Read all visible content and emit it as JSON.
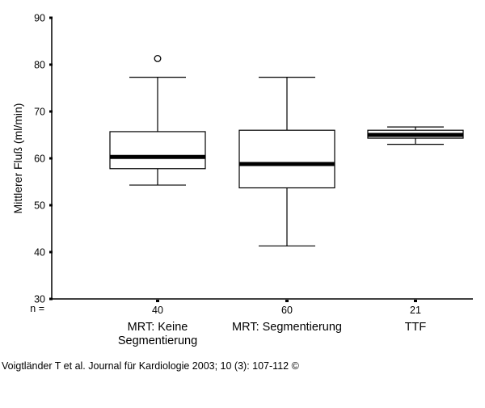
{
  "chart_data": {
    "type": "box",
    "ylabel": "Mittlerer Fluß (ml/min)",
    "ylim": [
      30,
      90
    ],
    "yticks": [
      30,
      40,
      50,
      60,
      70,
      80,
      90
    ],
    "n_prefix": "n =",
    "grid": false,
    "categories": [
      {
        "label": [
          "MRT: Keine",
          "Segmentierung"
        ],
        "n": "40",
        "whisker_low": 54.3,
        "q1": 57.8,
        "median": 60.3,
        "q3": 65.7,
        "whisker_high": 77.3,
        "outliers": [
          81.3
        ]
      },
      {
        "label": [
          "MRT: Segmentierung"
        ],
        "n": "60",
        "whisker_low": 41.3,
        "q1": 53.7,
        "median": 58.8,
        "q3": 66.0,
        "whisker_high": 77.3,
        "outliers": []
      },
      {
        "label": [
          "TTF"
        ],
        "n": "21",
        "whisker_low": 63.0,
        "q1": 64.3,
        "median": 65.0,
        "q3": 66.0,
        "whisker_high": 66.7,
        "outliers": []
      }
    ]
  },
  "credit": "Voigtländer T et al. Journal für Kardiologie 2003; 10 (3): 107-112 ©"
}
